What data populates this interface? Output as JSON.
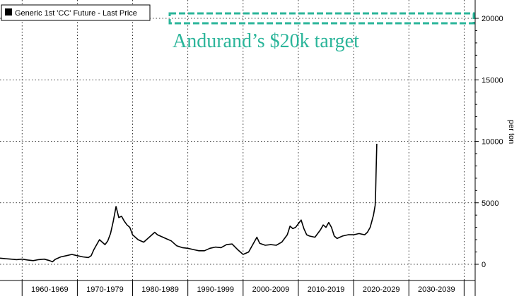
{
  "chart_data": {
    "type": "line",
    "legend": "Generic 1st 'CC' Future - Last Price",
    "ylabel": "per ton",
    "xlabel": "",
    "ylim": [
      0,
      20000
    ],
    "xlim": [
      1956,
      2042
    ],
    "yticks": [
      0,
      5000,
      10000,
      15000,
      20000
    ],
    "ytick_labels": [
      "0",
      "5000",
      "10000",
      "15000",
      "20000"
    ],
    "categories": [
      "1960-1969",
      "1970-1979",
      "1980-1989",
      "1990-1999",
      "2000-2009",
      "2010-2019",
      "2020-2029",
      "2030-2039"
    ],
    "grid": true,
    "legend_position": "top-left",
    "annotation": {
      "text": "Andurand’s $20k target",
      "value": 20000,
      "color": "#2bb59a"
    },
    "series": [
      {
        "name": "Generic 1st 'CC' Future - Last Price",
        "color": "#000000",
        "x": [
          1956.0,
          1957.0,
          1958.0,
          1959.0,
          1960.0,
          1961.0,
          1962.0,
          1963.0,
          1964.0,
          1965.0,
          1965.5,
          1966.0,
          1967.0,
          1968.0,
          1969.0,
          1970.0,
          1971.0,
          1972.0,
          1972.5,
          1973.0,
          1973.5,
          1974.0,
          1974.5,
          1975.0,
          1975.5,
          1976.0,
          1976.5,
          1977.0,
          1977.5,
          1978.0,
          1978.5,
          1979.0,
          1979.5,
          1980.0,
          1981.0,
          1982.0,
          1983.0,
          1984.0,
          1984.5,
          1985.0,
          1986.0,
          1987.0,
          1988.0,
          1989.0,
          1990.0,
          1991.0,
          1992.0,
          1993.0,
          1994.0,
          1995.0,
          1996.0,
          1997.0,
          1998.0,
          1999.0,
          2000.0,
          2001.0,
          2002.0,
          2002.5,
          2003.0,
          2004.0,
          2005.0,
          2006.0,
          2007.0,
          2008.0,
          2008.5,
          2009.0,
          2009.5,
          2010.0,
          2010.5,
          2011.0,
          2011.5,
          2012.0,
          2013.0,
          2014.0,
          2014.5,
          2015.0,
          2015.5,
          2016.0,
          2016.5,
          2017.0,
          2018.0,
          2019.0,
          2020.0,
          2021.0,
          2022.0,
          2022.5,
          2023.0,
          2023.3,
          2023.6,
          2023.9,
          2024.0,
          2024.1,
          2024.2
        ],
        "values": [
          500,
          450,
          420,
          380,
          420,
          350,
          300,
          380,
          420,
          300,
          200,
          400,
          600,
          700,
          800,
          700,
          600,
          550,
          700,
          1200,
          1600,
          2000,
          1800,
          1600,
          1900,
          2500,
          3500,
          4700,
          3800,
          3900,
          3500,
          3200,
          3000,
          2400,
          2000,
          1800,
          2200,
          2600,
          2400,
          2300,
          2100,
          1900,
          1500,
          1350,
          1300,
          1200,
          1100,
          1100,
          1300,
          1400,
          1350,
          1600,
          1650,
          1200,
          800,
          1000,
          1800,
          2200,
          1700,
          1550,
          1600,
          1550,
          1800,
          2400,
          3100,
          2900,
          3000,
          3300,
          3600,
          2900,
          2400,
          2300,
          2200,
          2800,
          3200,
          3000,
          3400,
          3000,
          2300,
          2100,
          2300,
          2400,
          2400,
          2500,
          2400,
          2600,
          3000,
          3500,
          4000,
          4800,
          6000,
          8000,
          9800
        ]
      }
    ]
  }
}
